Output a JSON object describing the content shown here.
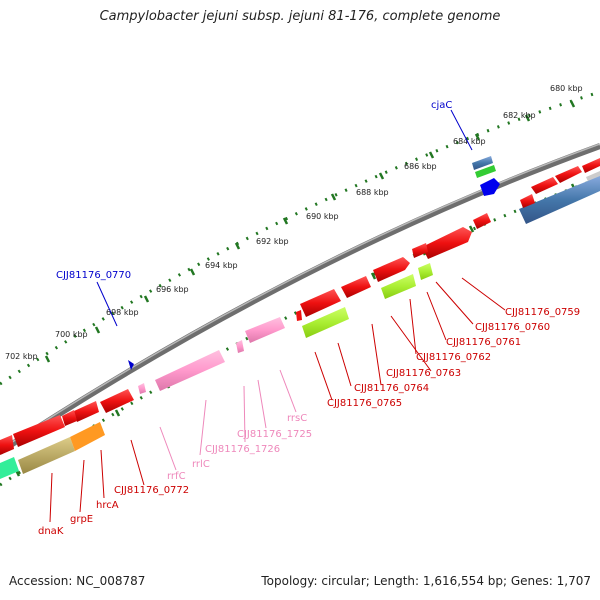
{
  "title": "Campylobacter jejuni subsp. jejuni 81-176, complete genome",
  "accession": "Accession: NC_008787",
  "summary": "Topology: circular; Length: 1,616,554 bp; Genes: 1,707",
  "colors": {
    "cds": "#ee1111",
    "trna": "#ff99cc",
    "rrna": "#ff88cc",
    "backbone": "#808080",
    "tick": "#227722",
    "blue_label": "#0000cc",
    "red_label": "#cc0000",
    "pink_label": "#ee88bb"
  },
  "scale_labels": [
    "680 kbp",
    "682 kbp",
    "684 kbp",
    "686 kbp",
    "688 kbp",
    "690 kbp",
    "692 kbp",
    "694 kbp",
    "696 kbp",
    "698 kbp",
    "700 kbp",
    "702 kbp"
  ],
  "gene_labels": [
    {
      "text": "cjaC",
      "color": "blue"
    },
    {
      "text": "CJJ81176_0770",
      "color": "blue"
    },
    {
      "text": "CJJ81176_0759",
      "color": "red"
    },
    {
      "text": "CJJ81176_0760",
      "color": "red"
    },
    {
      "text": "CJJ81176_0761",
      "color": "red"
    },
    {
      "text": "CJJ81176_0762",
      "color": "red"
    },
    {
      "text": "CJJ81176_0763",
      "color": "red"
    },
    {
      "text": "CJJ81176_0764",
      "color": "red"
    },
    {
      "text": "CJJ81176_0765",
      "color": "red"
    },
    {
      "text": "rrsC",
      "color": "pink"
    },
    {
      "text": "CJJ81176_1725",
      "color": "pink"
    },
    {
      "text": "CJJ81176_1726",
      "color": "pink"
    },
    {
      "text": "rrlC",
      "color": "pink"
    },
    {
      "text": "rrfC",
      "color": "pink"
    },
    {
      "text": "CJJ81176_0772",
      "color": "red"
    },
    {
      "text": "hrcA",
      "color": "red"
    },
    {
      "text": "grpE",
      "color": "red"
    },
    {
      "text": "dnaK",
      "color": "red"
    }
  ]
}
